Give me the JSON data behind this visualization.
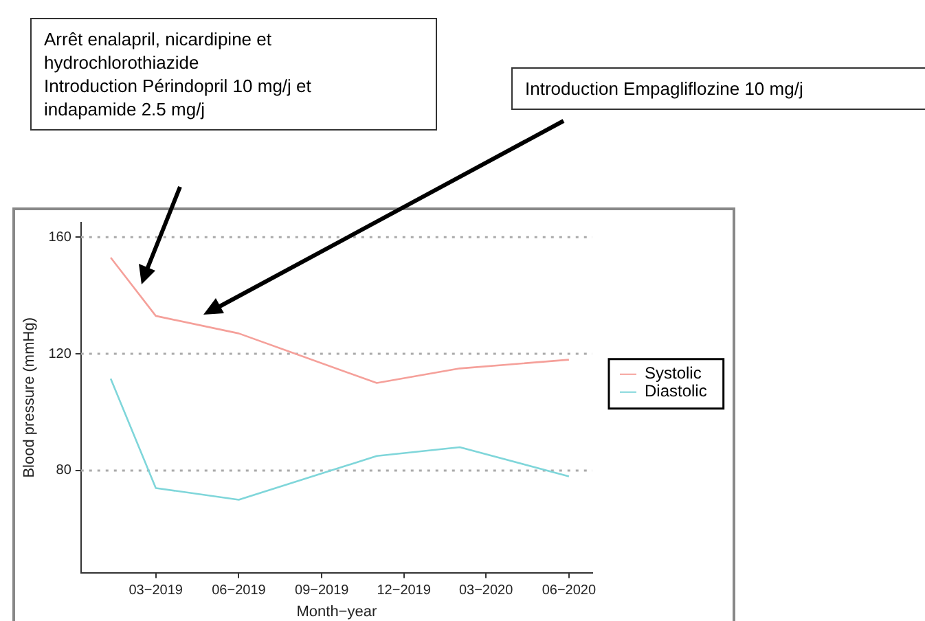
{
  "chart_data": {
    "type": "line",
    "xlabel": "Month−year",
    "ylabel": "Blood pressure (mmHg)",
    "x": [
      "2019-01-10",
      "2019-03-01",
      "2019-06-01",
      "2019-11-01",
      "2020-02-01",
      "2020-06-01"
    ],
    "series": [
      {
        "name": "Systolic",
        "color": "#f5a09a",
        "values": [
          153,
          133,
          127,
          110,
          115,
          118
        ]
      },
      {
        "name": "Diastolic",
        "color": "#7fd6da",
        "values": [
          111.5,
          74,
          70,
          85,
          88,
          78
        ]
      }
    ],
    "xlim": [
      "2018-12-08",
      "2020-06-27"
    ],
    "xticks": [
      {
        "value": "2019-03-01",
        "label": "03−2019"
      },
      {
        "value": "2019-06-01",
        "label": "06−2019"
      },
      {
        "value": "2019-09-01",
        "label": "09−2019"
      },
      {
        "value": "2019-12-01",
        "label": "12−2019"
      },
      {
        "value": "2020-03-01",
        "label": "03−2020"
      },
      {
        "value": "2020-06-01",
        "label": "06−2020"
      }
    ],
    "ylim": [
      45,
      165
    ],
    "yticks": [
      80,
      120,
      160
    ],
    "grid": "y",
    "legend": "right",
    "marker": "none",
    "line_style": "solid",
    "annotations": [
      "Arrêt enalapril, nicardipine et hydrochlorothiazide\nIntroduction Périndopril 10 mg/j et indapamide 2.5 mg/j",
      "Introduction Empagliflozine 10 mg/j"
    ]
  }
}
